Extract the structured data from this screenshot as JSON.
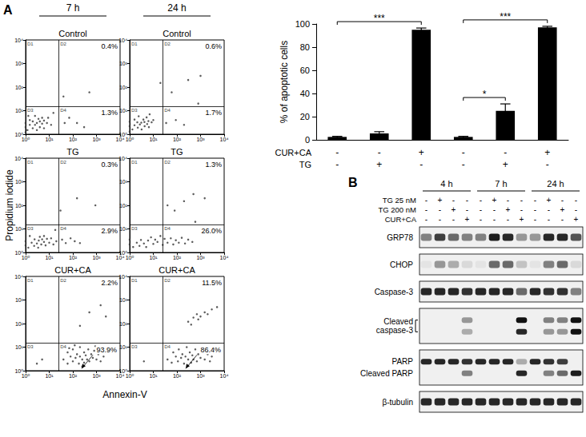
{
  "panel_labels": [
    "A",
    "B"
  ],
  "flow": {
    "type": "scatter",
    "x_label": "Annexin-V",
    "y_label": "Propidium iodide",
    "columns": [
      "7 h",
      "24 h"
    ],
    "log": true,
    "xlim": [
      1,
      10000
    ],
    "ylim": [
      1,
      10000
    ],
    "xticks": [
      {
        "value": 1,
        "label": "10⁰"
      },
      {
        "value": 10,
        "label": "10¹"
      },
      {
        "value": 100,
        "label": "10²"
      },
      {
        "value": 1000,
        "label": "10³"
      },
      {
        "value": 10000,
        "label": "10⁴"
      }
    ],
    "yticks": [
      {
        "value": 1,
        "label": "10⁰"
      },
      {
        "value": 10,
        "label": "10¹"
      },
      {
        "value": 100,
        "label": "10²"
      },
      {
        "value": 1000,
        "label": "10³"
      },
      {
        "value": 10000,
        "label": "10⁴"
      }
    ],
    "quadrant_labels": [
      "D1",
      "D2",
      "D3",
      "D4"
    ],
    "gates": {
      "x": 25,
      "y": 15
    },
    "panels": [
      {
        "title": "Control",
        "D2": "0.4%",
        "D4": "1.3%",
        "points": [
          [
            1.2,
            1.5
          ],
          [
            1.5,
            2.5
          ],
          [
            2,
            1.8
          ],
          [
            2,
            3.5
          ],
          [
            2.5,
            2.5
          ],
          [
            3,
            1.5
          ],
          [
            3,
            3
          ],
          [
            3.5,
            4.5
          ],
          [
            4,
            2
          ],
          [
            4,
            3.5
          ],
          [
            5,
            2.8
          ],
          [
            5,
            5
          ],
          [
            6,
            1.8
          ],
          [
            6,
            3.8
          ],
          [
            1.5,
            4
          ],
          [
            2.5,
            6
          ],
          [
            8,
            3
          ],
          [
            1,
            2
          ],
          [
            1,
            3
          ],
          [
            1,
            1.2
          ],
          [
            1.3,
            6
          ],
          [
            9,
            5
          ],
          [
            12,
            2.5
          ],
          [
            45,
            3
          ],
          [
            70,
            5
          ],
          [
            150,
            3
          ],
          [
            300,
            2
          ],
          [
            40,
            40
          ],
          [
            500,
            60
          ],
          [
            15,
            8
          ]
        ]
      },
      {
        "title": "Control",
        "D2": "0.6%",
        "D4": "1.7%",
        "points": [
          [
            1.3,
            1.6
          ],
          [
            1.6,
            2.4
          ],
          [
            2.2,
            1.9
          ],
          [
            2.1,
            3.2
          ],
          [
            2.7,
            2.6
          ],
          [
            3.2,
            1.6
          ],
          [
            3.1,
            3.1
          ],
          [
            3.8,
            4.2
          ],
          [
            4.3,
            2.2
          ],
          [
            4.2,
            3.3
          ],
          [
            5.5,
            2.7
          ],
          [
            5.2,
            5.2
          ],
          [
            6.5,
            2
          ],
          [
            6.2,
            3.6
          ],
          [
            1.6,
            4.2
          ],
          [
            2.4,
            5.8
          ],
          [
            8.5,
            3.2
          ],
          [
            1,
            2.2
          ],
          [
            1,
            3.4
          ],
          [
            1,
            1.3
          ],
          [
            7,
            7
          ],
          [
            10,
            4
          ],
          [
            35,
            3
          ],
          [
            90,
            4
          ],
          [
            200,
            2.5
          ],
          [
            60,
            60
          ],
          [
            300,
            200
          ],
          [
            1000,
            300
          ],
          [
            800,
            20
          ],
          [
            20,
            150
          ]
        ]
      },
      {
        "title": "TG",
        "D2": "0.3%",
        "D4": "2.9%",
        "points": [
          [
            1.3,
            1.6
          ],
          [
            1.8,
            2.6
          ],
          [
            2.3,
            1.9
          ],
          [
            2.4,
            3.6
          ],
          [
            3,
            2.4
          ],
          [
            3.4,
            1.6
          ],
          [
            3.6,
            3.2
          ],
          [
            4,
            4.6
          ],
          [
            4.6,
            2.2
          ],
          [
            5,
            3.6
          ],
          [
            6,
            2.8
          ],
          [
            6,
            5
          ],
          [
            7,
            2
          ],
          [
            8,
            3.8
          ],
          [
            10,
            2.6
          ],
          [
            12,
            4
          ],
          [
            1,
            2
          ],
          [
            1,
            3
          ],
          [
            1.5,
            5
          ],
          [
            15,
            2.2
          ],
          [
            20,
            3
          ],
          [
            35,
            3.5
          ],
          [
            50,
            2.5
          ],
          [
            80,
            4
          ],
          [
            120,
            3
          ],
          [
            200,
            2.5
          ],
          [
            30,
            60
          ],
          [
            150,
            200
          ],
          [
            900,
            100
          ],
          [
            18,
            9
          ]
        ]
      },
      {
        "title": "TG",
        "D2": "1.3%",
        "D4": "26.0%",
        "points": [
          [
            1.4,
            1.7
          ],
          [
            2,
            2.6
          ],
          [
            2.6,
            1.9
          ],
          [
            3,
            3.4
          ],
          [
            4,
            2.4
          ],
          [
            5,
            1.7
          ],
          [
            6,
            3.2
          ],
          [
            8,
            4.4
          ],
          [
            10,
            2.3
          ],
          [
            12,
            3.5
          ],
          [
            15,
            2.8
          ],
          [
            20,
            5
          ],
          [
            25,
            2.1
          ],
          [
            30,
            3.8
          ],
          [
            40,
            2.6
          ],
          [
            55,
            4
          ],
          [
            70,
            2.2
          ],
          [
            90,
            3.3
          ],
          [
            120,
            2.6
          ],
          [
            160,
            4.2
          ],
          [
            220,
            2.4
          ],
          [
            300,
            3.5
          ],
          [
            450,
            2.8
          ],
          [
            1,
            2.2
          ],
          [
            1,
            3.5
          ],
          [
            80,
            60
          ],
          [
            200,
            150
          ],
          [
            500,
            300
          ],
          [
            1500,
            200
          ],
          [
            40,
            100
          ],
          [
            600,
            20
          ]
        ]
      },
      {
        "title": "CUR+CA",
        "D2": "2.2%",
        "D4": "93.9%",
        "points": [
          [
            40,
            3
          ],
          [
            60,
            2
          ],
          [
            60,
            6
          ],
          [
            80,
            4
          ],
          [
            100,
            2.5
          ],
          [
            100,
            8
          ],
          [
            130,
            3.5
          ],
          [
            150,
            5
          ],
          [
            180,
            2
          ],
          [
            200,
            4
          ],
          [
            200,
            10
          ],
          [
            250,
            3
          ],
          [
            300,
            6
          ],
          [
            300,
            2.2
          ],
          [
            350,
            4.5
          ],
          [
            400,
            3
          ],
          [
            450,
            8
          ],
          [
            500,
            2.5
          ],
          [
            600,
            5
          ],
          [
            700,
            3.5
          ],
          [
            800,
            7
          ],
          [
            1000,
            3
          ],
          [
            1200,
            5
          ],
          [
            1500,
            2.5
          ],
          [
            2000,
            4
          ],
          [
            2500,
            6
          ],
          [
            120,
            12
          ],
          [
            250,
            1.5
          ],
          [
            70,
            9
          ],
          [
            900,
            11
          ],
          [
            3,
            2
          ],
          [
            5,
            3
          ],
          [
            500,
            300
          ],
          [
            1500,
            600
          ],
          [
            200,
            80
          ],
          [
            2500,
            200
          ]
        ]
      },
      {
        "title": "CUR+CA",
        "D2": "11.5%",
        "D4": "86.4%",
        "points": [
          [
            40,
            3
          ],
          [
            60,
            2.2
          ],
          [
            70,
            6
          ],
          [
            90,
            4
          ],
          [
            110,
            2.5
          ],
          [
            120,
            8
          ],
          [
            150,
            3.5
          ],
          [
            170,
            5
          ],
          [
            200,
            2
          ],
          [
            230,
            4
          ],
          [
            260,
            10
          ],
          [
            300,
            3
          ],
          [
            350,
            6
          ],
          [
            400,
            2.2
          ],
          [
            450,
            4.5
          ],
          [
            500,
            3
          ],
          [
            600,
            8
          ],
          [
            700,
            2.5
          ],
          [
            800,
            5
          ],
          [
            1000,
            3.5
          ],
          [
            1200,
            7
          ],
          [
            1500,
            3
          ],
          [
            2000,
            5
          ],
          [
            2500,
            2.5
          ],
          [
            3000,
            4
          ],
          [
            4,
            2.5
          ],
          [
            300,
            120
          ],
          [
            500,
            180
          ],
          [
            700,
            250
          ],
          [
            1000,
            200
          ],
          [
            1500,
            300
          ],
          [
            2000,
            250
          ],
          [
            3000,
            400
          ],
          [
            800,
            150
          ],
          [
            400,
            90
          ],
          [
            5000,
            500
          ]
        ]
      }
    ]
  },
  "chart_data": {
    "type": "bar",
    "y_label": "% of apoptotic cells",
    "categories": [
      null,
      null,
      null,
      null,
      null,
      null
    ],
    "values": [
      2.5,
      5.5,
      95,
      2.5,
      25,
      97
    ],
    "errors": [
      0.5,
      1.5,
      1.5,
      0.5,
      6,
      1
    ],
    "color": "#000000",
    "ylim": [
      0,
      100
    ],
    "yticks": [
      0,
      20,
      40,
      60,
      80,
      100
    ],
    "grid": false,
    "treatments": [
      {
        "label": "CUR+CA",
        "marks": [
          "-",
          "-",
          "+",
          "-",
          "-",
          "+"
        ]
      },
      {
        "label": "TG",
        "marks": [
          "-",
          "+",
          "-",
          "-",
          "+",
          "-"
        ]
      }
    ],
    "significance": [
      {
        "from": 0,
        "to": 2,
        "label": "***"
      },
      {
        "from": 3,
        "to": 5,
        "label": "***"
      },
      {
        "from": 3,
        "to": 4,
        "label": "*"
      }
    ]
  },
  "blot": {
    "groups": [
      "4 h",
      "7 h",
      "24 h"
    ],
    "treatments": [
      {
        "label": "TG 25 nM",
        "marks": [
          "-",
          "+",
          "-",
          "-",
          "-",
          "+",
          "-",
          "-",
          "-",
          "+",
          "-",
          "-"
        ]
      },
      {
        "label": "TG 200 nM",
        "marks": [
          "-",
          "-",
          "+",
          "-",
          "-",
          "-",
          "+",
          "-",
          "-",
          "-",
          "+",
          "-"
        ]
      },
      {
        "label": "CUR+CA",
        "marks": [
          "-",
          "-",
          "-",
          "+",
          "-",
          "-",
          "-",
          "+",
          "-",
          "-",
          "-",
          "+"
        ]
      }
    ],
    "strips": [
      {
        "labels": [
          "GRP78"
        ],
        "bands": [
          [
            0.5,
            0.8,
            0.6,
            0.5,
            0.5,
            0.95,
            0.9,
            0.4,
            0.4,
            0.9,
            0.9,
            0.7
          ]
        ]
      },
      {
        "labels": [
          "CHOP"
        ],
        "bands": [
          [
            0.05,
            0.4,
            0.3,
            0.1,
            0.05,
            0.6,
            0.6,
            0.2,
            0.05,
            0.5,
            0.6,
            0.1
          ]
        ]
      },
      {
        "labels": [
          "Caspase-3"
        ],
        "bands": [
          [
            0.9,
            0.9,
            0.9,
            0.85,
            0.9,
            0.9,
            0.9,
            0.6,
            0.9,
            0.85,
            0.85,
            0.5
          ]
        ]
      },
      {
        "labels": [
          "Cleaved caspase-3"
        ],
        "bands": [
          [
            0,
            0,
            0,
            0.4,
            0,
            0,
            0,
            1,
            0,
            0.5,
            0.5,
            1
          ],
          [
            0,
            0,
            0,
            0.3,
            0,
            0,
            0,
            0.9,
            0,
            0.4,
            0.4,
            1
          ]
        ]
      },
      {
        "labels": [
          "PARP",
          "Cleaved PARP"
        ],
        "bands": [
          [
            0.9,
            0.9,
            0.9,
            0.85,
            0.9,
            0.9,
            0.9,
            0.3,
            0.9,
            0.85,
            0.8,
            0
          ],
          [
            0,
            0,
            0,
            0.5,
            0,
            0,
            0,
            0.9,
            0,
            0.5,
            0.6,
            0.95
          ]
        ]
      },
      {
        "labels": [
          "β-tubulin"
        ],
        "bands": [
          [
            0.9,
            0.9,
            0.9,
            0.9,
            0.9,
            0.9,
            0.9,
            0.9,
            0.9,
            0.9,
            0.9,
            0.9
          ]
        ]
      }
    ]
  }
}
